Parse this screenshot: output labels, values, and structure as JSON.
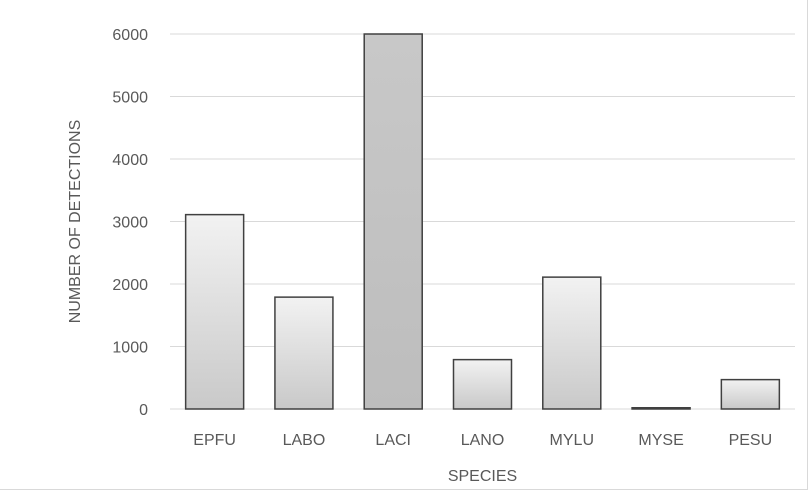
{
  "chart_data": {
    "type": "bar",
    "title": "",
    "xlabel": "SPECIES",
    "ylabel": "NUMBER OF DETECTIONS",
    "categories": [
      "EPFU",
      "LABO",
      "LACI",
      "LANO",
      "MYLU",
      "MYSE",
      "PESU"
    ],
    "values": [
      3110,
      1790,
      6000,
      790,
      2110,
      20,
      470
    ],
    "ylim": [
      0,
      6000
    ],
    "yticks": [
      0,
      1000,
      2000,
      3000,
      4000,
      5000,
      6000
    ],
    "grid": true,
    "legend": "none",
    "highlight_index": 2,
    "colors": {
      "bar_light_top": "#f2f2f2",
      "bar_light_bottom": "#c9c9c9",
      "bar_dark_top": "#c8c8c8",
      "bar_dark_bottom": "#bdbdbd",
      "bar_stroke": "#404040",
      "grid": "#d9d9d9",
      "text": "#595959"
    }
  }
}
